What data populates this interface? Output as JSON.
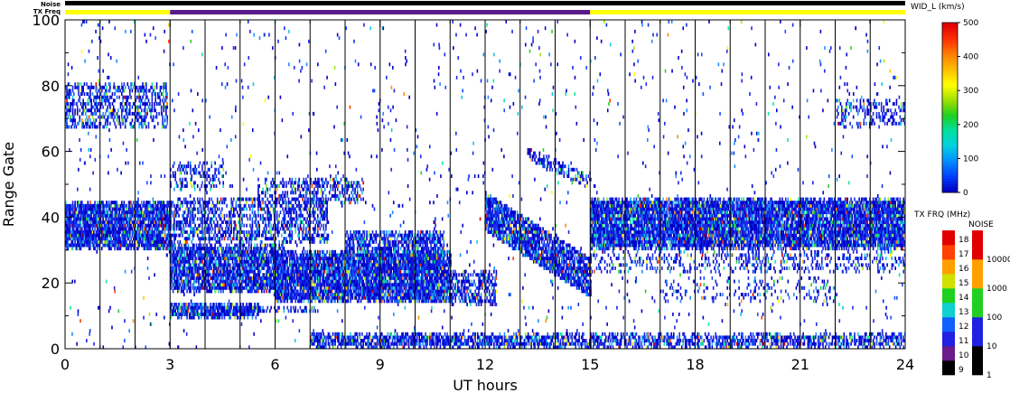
{
  "chart_data": {
    "type": "heatmap",
    "xlabel": "UT hours",
    "ylabel": "Range Gate",
    "xlim": [
      0,
      24
    ],
    "ylim": [
      0,
      100
    ],
    "x_ticks": [
      "0",
      "3",
      "6",
      "9",
      "12",
      "15",
      "18",
      "21",
      "24"
    ],
    "y_ticks": [
      "0",
      "20",
      "40",
      "60",
      "80",
      "100"
    ],
    "color_scale": {
      "title": "WID_L (km/s)",
      "range": [
        0,
        500
      ],
      "tick_labels": [
        "0",
        "100",
        "200",
        "300",
        "400",
        "500"
      ]
    },
    "status_bars": {
      "noise_label": "Noise",
      "txfreq_label": "TX Freq",
      "txfreq_segments": [
        {
          "start": 0,
          "end": 3,
          "color": "#ffff00"
        },
        {
          "start": 3,
          "end": 15,
          "color": "#5a1a8c"
        },
        {
          "start": 15,
          "end": 24,
          "color": "#ffff00"
        }
      ]
    },
    "tx_freq_legend": {
      "title": "TX FRQ (MHz)",
      "labels": [
        "9",
        "10",
        "11",
        "12",
        "13",
        "14",
        "15",
        "16",
        "17",
        "18"
      ],
      "colors": [
        "#000000",
        "#6a1a8a",
        "#2020e0",
        "#1060ff",
        "#10d0d0",
        "#20d020",
        "#d0e000",
        "#ffa000",
        "#ff4000",
        "#e00000"
      ]
    },
    "noise_legend": {
      "title": "NOISE",
      "labels": [
        "1",
        "10",
        "100",
        "1000",
        "10000"
      ],
      "colors": [
        "#000000",
        "#2020e0",
        "#20d020",
        "#ffa000",
        "#e00000"
      ]
    },
    "echo_regions": [
      {
        "t0": 0,
        "t1": 3,
        "g0": 30,
        "g1": 45,
        "density": 0.9
      },
      {
        "t0": 0,
        "t1": 2.9,
        "g0": 67,
        "g1": 81,
        "density": 0.45
      },
      {
        "t0": 3,
        "t1": 5.5,
        "g0": 9,
        "g1": 14,
        "density": 0.9
      },
      {
        "t0": 5.5,
        "t1": 7.2,
        "g0": 11,
        "g1": 13,
        "density": 0.6
      },
      {
        "t0": 3,
        "t1": 6.2,
        "g0": 17,
        "g1": 32,
        "density": 0.85
      },
      {
        "t0": 3,
        "t1": 7.5,
        "g0": 32,
        "g1": 46,
        "density": 0.5
      },
      {
        "t0": 3,
        "t1": 4.5,
        "g0": 48,
        "g1": 57,
        "density": 0.35
      },
      {
        "t0": 5.5,
        "t1": 8.5,
        "g0": 44,
        "g1": 52,
        "density": 0.4
      },
      {
        "t0": 6,
        "t1": 11,
        "g0": 14,
        "g1": 30,
        "density": 0.9
      },
      {
        "t0": 8,
        "t1": 10.8,
        "g0": 24,
        "g1": 36,
        "density": 0.7
      },
      {
        "t0": 11,
        "t1": 12.3,
        "g0": 13,
        "g1": 24,
        "density": 0.55
      },
      {
        "t0": 7,
        "t1": 15,
        "g0": 0,
        "g1": 5,
        "density": 0.75
      },
      {
        "t0": 15,
        "t1": 24,
        "g0": 0,
        "g1": 5,
        "density": 0.6
      },
      {
        "t0": 15,
        "t1": 24,
        "g0": 30,
        "g1": 46,
        "density": 0.9
      },
      {
        "t0": 15,
        "t1": 24,
        "g0": 23,
        "g1": 30,
        "density": 0.25
      },
      {
        "t0": 17,
        "t1": 22,
        "g0": 14,
        "g1": 22,
        "density": 0.15
      },
      {
        "t0": 22,
        "t1": 24,
        "g0": 67,
        "g1": 76,
        "density": 0.3
      }
    ],
    "echo_slants": [
      {
        "t0": 12,
        "t1": 15,
        "g_top0": 48,
        "g_top1": 28,
        "width": 12,
        "density": 0.85
      },
      {
        "t0": 13.2,
        "t1": 15,
        "g_top0": 62,
        "g_top1": 53,
        "width": 4,
        "density": 0.5
      }
    ],
    "scan_boundaries_hours": [
      1,
      2,
      3,
      4,
      5,
      6,
      7,
      8,
      9,
      10,
      11,
      12,
      13,
      14,
      15,
      16,
      17,
      18,
      19,
      20,
      21,
      22,
      23
    ]
  }
}
